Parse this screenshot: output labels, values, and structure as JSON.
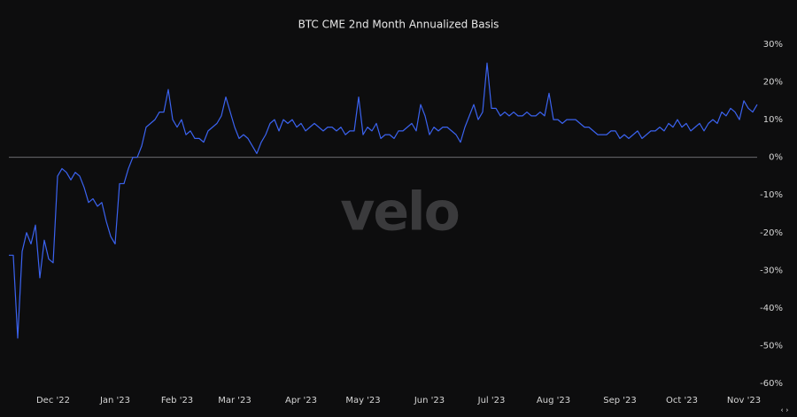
{
  "chart_data": {
    "type": "line",
    "title": "BTC CME 2nd Month Annualized Basis",
    "watermark": "velo",
    "categories": [
      null,
      null,
      null,
      null,
      null,
      null,
      null,
      null,
      null,
      null,
      "Dec '22",
      null,
      null,
      null,
      null,
      null,
      null,
      null,
      null,
      null,
      null,
      null,
      null,
      null,
      "Jan '23",
      null,
      null,
      null,
      null,
      null,
      null,
      null,
      null,
      null,
      null,
      null,
      null,
      null,
      "Feb '23",
      null,
      null,
      null,
      null,
      null,
      null,
      null,
      null,
      null,
      null,
      null,
      null,
      "Mar '23",
      null,
      null,
      null,
      null,
      null,
      null,
      null,
      null,
      null,
      null,
      null,
      null,
      null,
      null,
      "Apr '23",
      null,
      null,
      null,
      null,
      null,
      null,
      null,
      null,
      null,
      null,
      null,
      null,
      null,
      "May '23",
      null,
      null,
      null,
      null,
      null,
      null,
      null,
      null,
      null,
      null,
      null,
      null,
      null,
      null,
      "Jun '23",
      null,
      null,
      null,
      null,
      null,
      null,
      null,
      null,
      null,
      null,
      null,
      null,
      null,
      "Jul '23",
      null,
      null,
      null,
      null,
      null,
      null,
      null,
      null,
      null,
      null,
      null,
      null,
      null,
      "Aug '23",
      null,
      null,
      null,
      null,
      null,
      null,
      null,
      null,
      null,
      null,
      null,
      null,
      null,
      null,
      "Sep '23",
      null,
      null,
      null,
      null,
      null,
      null,
      null,
      null,
      null,
      null,
      null,
      null,
      null,
      "Oct '23",
      null,
      null,
      null,
      null,
      null,
      null,
      null,
      null,
      null,
      null,
      null,
      null,
      null,
      "Nov '23",
      null,
      null,
      null
    ],
    "series": [
      {
        "name": "BTC CME 2nd Month Annualized Basis",
        "color": "#3b63f0",
        "values": [
          -26,
          -26,
          -48,
          -25,
          -20,
          -23,
          -18,
          -32,
          -22,
          -27,
          -28,
          -5,
          -3,
          -4,
          -6,
          -4,
          -5,
          -8,
          -12,
          -11,
          -13,
          -12,
          -17,
          -21,
          -23,
          -7,
          -7,
          -3,
          0,
          0,
          3,
          8,
          9,
          10,
          12,
          12,
          18,
          10,
          8,
          10,
          6,
          7,
          5,
          5,
          4,
          7,
          8,
          9,
          11,
          16,
          12,
          8,
          5,
          6,
          5,
          3,
          1,
          4,
          6,
          9,
          10,
          7,
          10,
          9,
          10,
          8,
          9,
          7,
          8,
          9,
          8,
          7,
          8,
          8,
          7,
          8,
          6,
          7,
          7,
          16,
          6,
          8,
          7,
          9,
          5,
          6,
          6,
          5,
          7,
          7,
          8,
          9,
          7,
          14,
          11,
          6,
          8,
          7,
          8,
          8,
          7,
          6,
          4,
          8,
          11,
          14,
          10,
          12,
          25,
          13,
          13,
          11,
          12,
          11,
          12,
          11,
          11,
          12,
          11,
          11,
          12,
          11,
          17,
          10,
          10,
          9,
          10,
          10,
          10,
          9,
          8,
          8,
          7,
          6,
          6,
          6,
          7,
          7,
          5,
          6,
          5,
          6,
          7,
          5,
          6,
          7,
          7,
          8,
          7,
          9,
          8,
          10,
          8,
          9,
          7,
          8,
          9,
          7,
          9,
          10,
          9,
          12,
          11,
          13,
          12,
          10,
          15,
          13,
          12,
          14
        ]
      }
    ],
    "ylim": [
      -60,
      30
    ],
    "yticks": [
      {
        "value": -60,
        "label": "-60%"
      },
      {
        "value": -50,
        "label": "-50%"
      },
      {
        "value": -40,
        "label": "-40%"
      },
      {
        "value": -30,
        "label": "-30%"
      },
      {
        "value": -20,
        "label": "-20%"
      },
      {
        "value": -10,
        "label": "-10%"
      },
      {
        "value": 0,
        "label": "0%"
      },
      {
        "value": 10,
        "label": "10%"
      },
      {
        "value": 20,
        "label": "20%"
      },
      {
        "value": 30,
        "label": "30%"
      }
    ],
    "zero_line": true
  }
}
